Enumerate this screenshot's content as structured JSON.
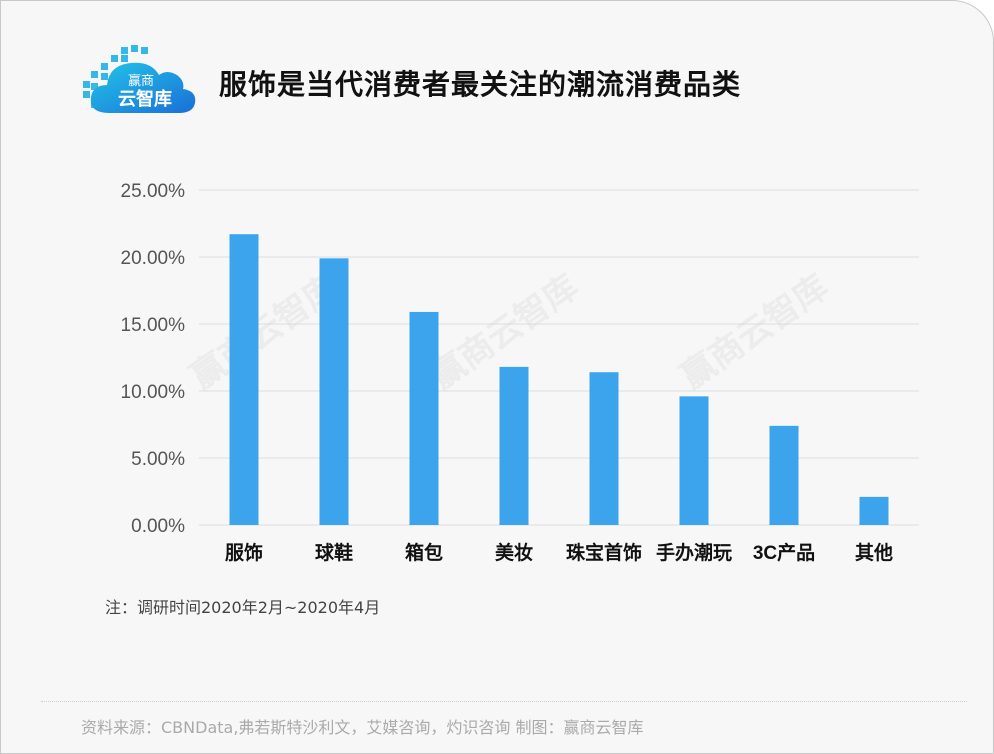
{
  "logo": {
    "line1": "赢商",
    "line2": "云智库"
  },
  "watermark": "赢商云智库",
  "note": "注：调研时间2020年2月~2020年4月",
  "source": "资料来源：CBNData,弗若斯特沙利文，艾媒咨询，灼识咨询   制图：赢商云智库",
  "chart_data": {
    "type": "bar",
    "title": "服饰是当代消费者最关注的潮流消费品类",
    "categories": [
      "服饰",
      "球鞋",
      "箱包",
      "美妆",
      "珠宝首饰",
      "手办潮玩",
      "3C产品",
      "其他"
    ],
    "values": [
      21.7,
      19.9,
      15.9,
      11.8,
      11.4,
      9.6,
      7.4,
      2.1
    ],
    "yticks": [
      "0.00%",
      "5.00%",
      "10.00%",
      "15.00%",
      "20.00%",
      "25.00%"
    ],
    "ylim": [
      0,
      25
    ],
    "bar_color": "#3ba4ec",
    "grid": true,
    "xlabel": "",
    "ylabel": ""
  }
}
